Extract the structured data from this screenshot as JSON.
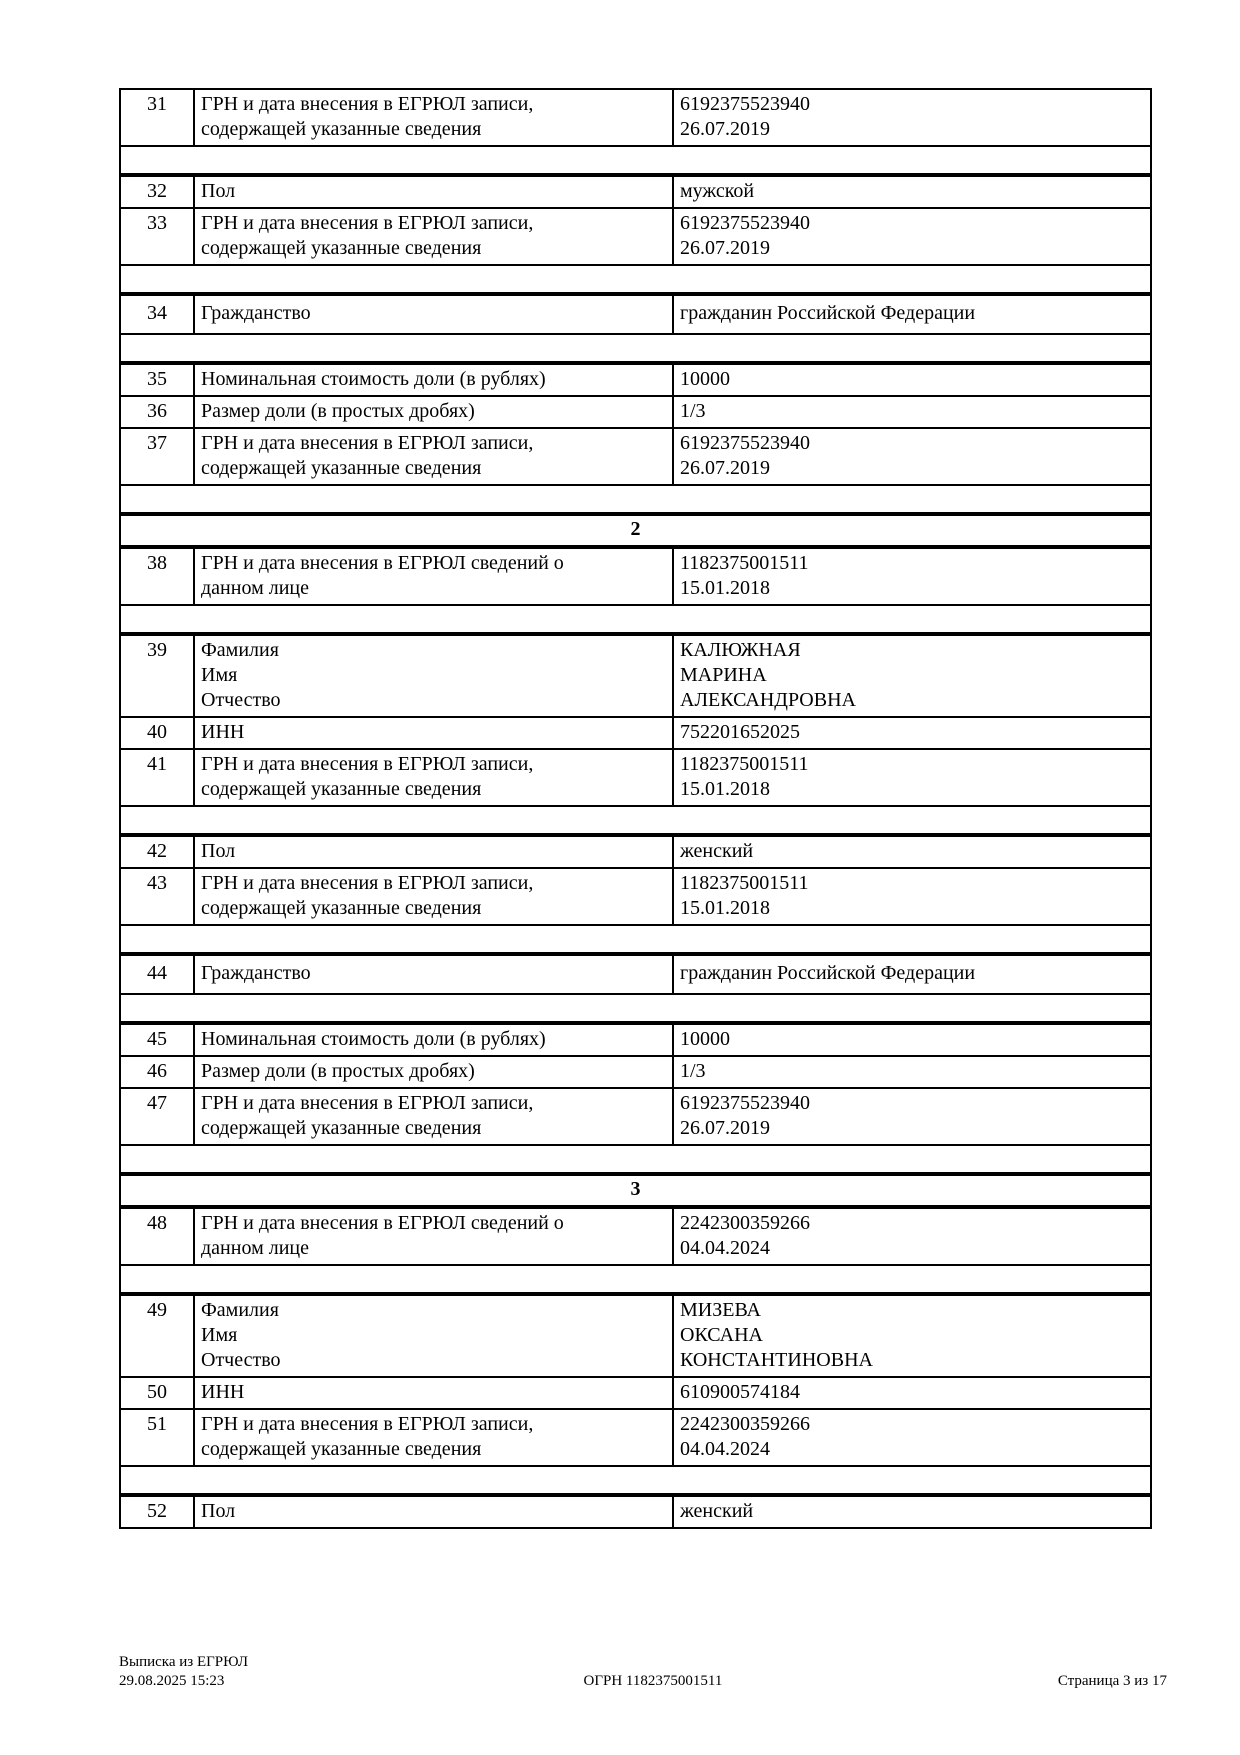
{
  "table": {
    "blocks": [
      {
        "rows": [
          {
            "num": "31",
            "label": "ГРН и дата внесения в ЕГРЮЛ записи,\nсодержащей указанные сведения",
            "value": "6192375523940\n26.07.2019"
          }
        ],
        "spacer": true
      },
      {
        "rows": [
          {
            "num": "32",
            "label": "Пол",
            "value": "мужской"
          },
          {
            "num": "33",
            "label": "ГРН и дата внесения в ЕГРЮЛ записи,\nсодержащей указанные сведения",
            "value": "6192375523940\n26.07.2019"
          }
        ],
        "spacer": true
      },
      {
        "rows": [
          {
            "num": "34",
            "label": "Гражданство",
            "value": "гражданин Российской Федерации",
            "tall": true
          }
        ],
        "spacer": true
      },
      {
        "rows": [
          {
            "num": "35",
            "label": "Номинальная стоимость доли (в рублях)",
            "value": "10000"
          },
          {
            "num": "36",
            "label": "Размер доли (в простых дробях)",
            "value": "1/3"
          },
          {
            "num": "37",
            "label": "ГРН и дата внесения в ЕГРЮЛ записи,\nсодержащей указанные сведения",
            "value": "6192375523940\n26.07.2019"
          }
        ],
        "spacer": true
      },
      {
        "header": "2"
      },
      {
        "rows": [
          {
            "num": "38",
            "label": "ГРН и дата внесения в ЕГРЮЛ сведений о\nданном лице",
            "value": "1182375001511\n15.01.2018"
          }
        ],
        "spacer": true
      },
      {
        "rows": [
          {
            "num": "39",
            "label": "Фамилия\nИмя\nОтчество",
            "value": "КАЛЮЖНАЯ\nМАРИНА\nАЛЕКСАНДРОВНА"
          },
          {
            "num": "40",
            "label": "ИНН",
            "value": "752201652025"
          },
          {
            "num": "41",
            "label": "ГРН и дата внесения в ЕГРЮЛ записи,\nсодержащей указанные сведения",
            "value": "1182375001511\n15.01.2018"
          }
        ],
        "spacer": true
      },
      {
        "rows": [
          {
            "num": "42",
            "label": "Пол",
            "value": "женский"
          },
          {
            "num": "43",
            "label": "ГРН и дата внесения в ЕГРЮЛ записи,\nсодержащей указанные сведения",
            "value": "1182375001511\n15.01.2018"
          }
        ],
        "spacer": true
      },
      {
        "rows": [
          {
            "num": "44",
            "label": "Гражданство",
            "value": "гражданин Российской Федерации",
            "tall": true
          }
        ],
        "spacer": true
      },
      {
        "rows": [
          {
            "num": "45",
            "label": "Номинальная стоимость доли (в рублях)",
            "value": "10000"
          },
          {
            "num": "46",
            "label": "Размер доли (в простых дробях)",
            "value": "1/3"
          },
          {
            "num": "47",
            "label": "ГРН и дата внесения в ЕГРЮЛ записи,\nсодержащей указанные сведения",
            "value": "6192375523940\n26.07.2019"
          }
        ],
        "spacer": true
      },
      {
        "header": "3"
      },
      {
        "rows": [
          {
            "num": "48",
            "label": "ГРН и дата внесения в ЕГРЮЛ сведений о\nданном лице",
            "value": "2242300359266\n04.04.2024"
          }
        ],
        "spacer": true
      },
      {
        "rows": [
          {
            "num": "49",
            "label": "Фамилия\nИмя\nОтчество",
            "value": "МИЗЕВА\nОКСАНА\nКОНСТАНТИНОВНА"
          },
          {
            "num": "50",
            "label": "ИНН",
            "value": "610900574184"
          },
          {
            "num": "51",
            "label": "ГРН и дата внесения в ЕГРЮЛ записи,\nсодержащей указанные сведения",
            "value": "2242300359266\n04.04.2024"
          }
        ],
        "spacer": true
      },
      {
        "rows": [
          {
            "num": "52",
            "label": "Пол",
            "value": "женский"
          }
        ],
        "spacer": false
      }
    ]
  },
  "footer": {
    "doc_type": "Выписка из ЕГРЮЛ",
    "timestamp": "29.08.2025 15:23",
    "ogrn": "ОГРН 1182375001511",
    "page_indicator": "Страница 3 из 17"
  }
}
